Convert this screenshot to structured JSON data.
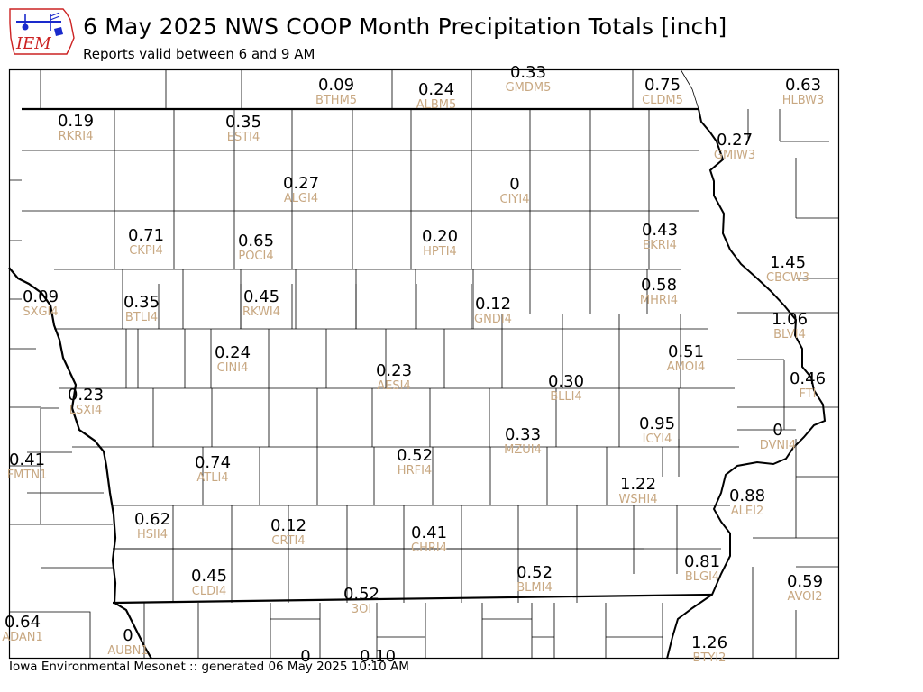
{
  "header": {
    "logo_text": "IEM",
    "title": "6 May 2025 NWS COOP Month Precipitation Totals [inch]",
    "subtitle": "Reports valid between 6 and 9 AM"
  },
  "footer": {
    "text": "Iowa Environmental Mesonet :: generated 06 May 2025 10:10 AM"
  },
  "colors": {
    "value_text": "#000000",
    "station_id_text": "#c8a882",
    "boundary_lines": "#000000",
    "background": "#ffffff",
    "logo_red": "#cc2222",
    "logo_blue": "#1a2acc"
  },
  "stations": [
    {
      "value": "0.09",
      "id": "BTHM5"
    },
    {
      "value": "0.24",
      "id": "ALBM5"
    },
    {
      "value": "0.33",
      "id": "GMDM5"
    },
    {
      "value": "0.75",
      "id": "CLDM5"
    },
    {
      "value": "0.63",
      "id": "HLBW3"
    },
    {
      "value": "0.19",
      "id": "RKRI4"
    },
    {
      "value": "0.35",
      "id": "ESTI4"
    },
    {
      "value": "0.27",
      "id": "GMIW3"
    },
    {
      "value": "0.27",
      "id": "ALGI4"
    },
    {
      "value": "0",
      "id": "CIYI4"
    },
    {
      "value": "0.71",
      "id": "CKPI4"
    },
    {
      "value": "0.65",
      "id": "POCI4"
    },
    {
      "value": "0.20",
      "id": "HPTI4"
    },
    {
      "value": "0.43",
      "id": "EKRI4"
    },
    {
      "value": "1.45",
      "id": "CBCW3"
    },
    {
      "value": "0.09",
      "id": "SXGI4"
    },
    {
      "value": "0.35",
      "id": "BTLI4"
    },
    {
      "value": "0.45",
      "id": "RKWI4"
    },
    {
      "value": "0.12",
      "id": "GNDI4"
    },
    {
      "value": "0.58",
      "id": "MHRI4"
    },
    {
      "value": "1.06",
      "id": "BLVI4"
    },
    {
      "value": "0.24",
      "id": "CINI4"
    },
    {
      "value": "0.51",
      "id": "AMOI4"
    },
    {
      "value": "0.23",
      "id": "AESI4"
    },
    {
      "value": "0.30",
      "id": "BLLI4"
    },
    {
      "value": "0.46",
      "id": "FTI"
    },
    {
      "value": "0.23",
      "id": "LSXI4"
    },
    {
      "value": "0.95",
      "id": "ICYI4"
    },
    {
      "value": "0",
      "id": "DVNI4"
    },
    {
      "value": "0.33",
      "id": "MZUI4"
    },
    {
      "value": "0.41",
      "id": "FMTN1"
    },
    {
      "value": "0.74",
      "id": "ATLI4"
    },
    {
      "value": "0.52",
      "id": "HRFI4"
    },
    {
      "value": "1.22",
      "id": "WSHI4"
    },
    {
      "value": "0.88",
      "id": "ALEI2"
    },
    {
      "value": "0.62",
      "id": "HSII4"
    },
    {
      "value": "0.12",
      "id": "CRTI4"
    },
    {
      "value": "0.41",
      "id": "CHRI4"
    },
    {
      "value": "0.45",
      "id": "CLDI4"
    },
    {
      "value": "0.52",
      "id": "BLMI4"
    },
    {
      "value": "0.81",
      "id": "BLGI4"
    },
    {
      "value": "0.59",
      "id": "AVOI2"
    },
    {
      "value": "0.52",
      "id": "3OI"
    },
    {
      "value": "0.64",
      "id": "ADAN1"
    },
    {
      "value": "0",
      "id": "AUBN1"
    },
    {
      "value": "1.26",
      "id": "BTYI2"
    },
    {
      "value": "0",
      "id": ""
    },
    {
      "value": "0.10",
      "id": ""
    }
  ]
}
